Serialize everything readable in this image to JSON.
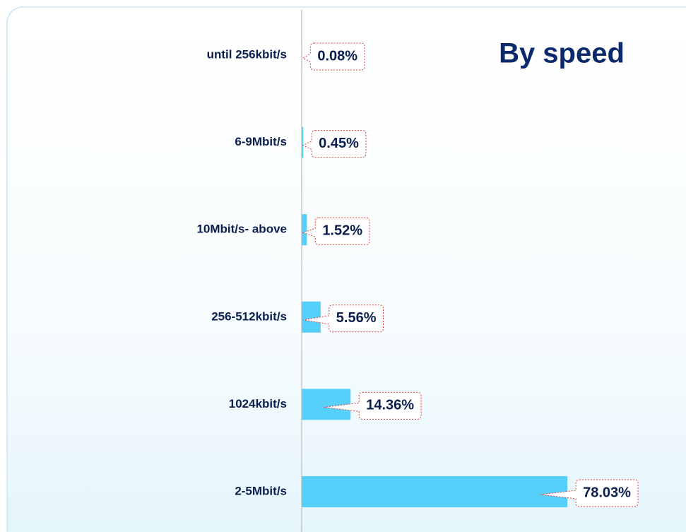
{
  "chart_data": {
    "type": "hbar",
    "title": "By speed",
    "categories": [
      "until 256kbit/s",
      "6-9Mbit/s",
      "10Mbit/s- above",
      "256-512kbit/s",
      "1024kbit/s",
      "2-5Mbit/s"
    ],
    "values": [
      0.08,
      0.45,
      1.52,
      5.56,
      14.36,
      78.03
    ],
    "value_labels": [
      "0.08%",
      "0.45%",
      "1.52%",
      "5.56%",
      "14.36%",
      "78.03%"
    ],
    "color": "#55d0fb",
    "xlim": [
      0,
      100
    ]
  }
}
